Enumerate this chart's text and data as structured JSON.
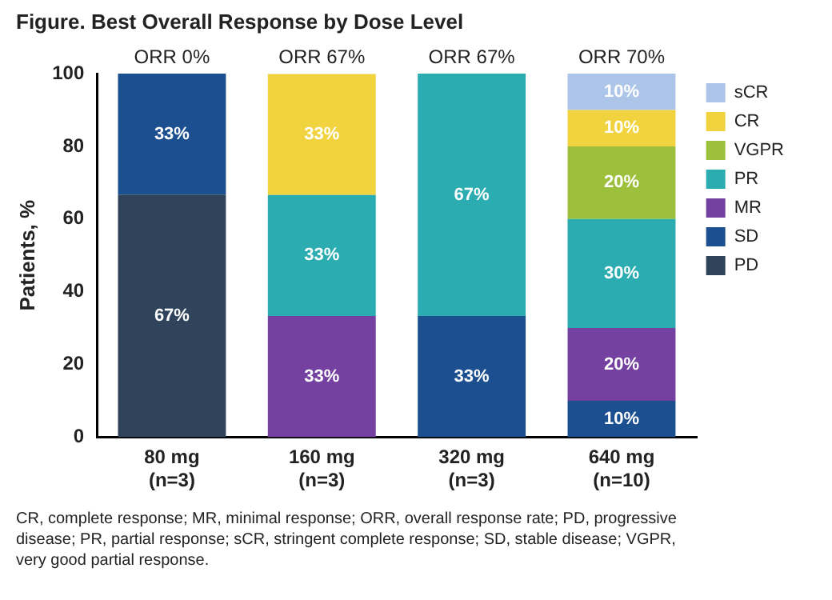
{
  "chart_data": {
    "type": "bar",
    "title": "Figure. Best Overall Response by Dose Level",
    "ylabel": "Patients, %",
    "stacked": true,
    "categories": [
      "80 mg\n(n=3)",
      "160 mg\n(n=3)",
      "320 mg\n(n=3)",
      "640 mg\n(n=10)"
    ],
    "series": [
      {
        "name": "PD",
        "color": "#2f435a",
        "values": [
          66.7,
          0,
          0,
          0
        ],
        "value_labels": [
          "67%",
          null,
          null,
          null
        ]
      },
      {
        "name": "SD",
        "color": "#1b4f8f",
        "values": [
          33.3,
          0,
          33.3,
          10
        ],
        "value_labels": [
          "33%",
          null,
          "33%",
          "10%"
        ]
      },
      {
        "name": "MR",
        "color": "#7441a0",
        "values": [
          0,
          33.3,
          0,
          20
        ],
        "value_labels": [
          null,
          "33%",
          null,
          "20%"
        ]
      },
      {
        "name": "PR",
        "color": "#2bacb0",
        "values": [
          0,
          33.3,
          66.7,
          30
        ],
        "value_labels": [
          null,
          "33%",
          "67%",
          "30%"
        ]
      },
      {
        "name": "VGPR",
        "color": "#9dc03c",
        "values": [
          0,
          0,
          0,
          20
        ],
        "value_labels": [
          null,
          null,
          null,
          "20%"
        ]
      },
      {
        "name": "CR",
        "color": "#f0d33f",
        "values": [
          0,
          33.3,
          0,
          10
        ],
        "value_labels": [
          null,
          "33%",
          null,
          "10%"
        ]
      },
      {
        "name": "sCR",
        "color": "#adc5e8",
        "values": [
          0,
          0,
          0,
          10
        ],
        "value_labels": [
          null,
          null,
          null,
          "10%"
        ]
      }
    ],
    "ylim": [
      0,
      100
    ],
    "yticks": [
      0,
      20,
      40,
      60,
      80,
      100
    ],
    "grid": false,
    "legend": "right",
    "annotations": [
      {
        "text": "ORR 0%",
        "x": "80 mg\n(n=3)",
        "y": 100
      },
      {
        "text": "ORR 67%",
        "x": "160 mg\n(n=3)",
        "y": 100
      },
      {
        "text": "ORR 67%",
        "x": "320 mg\n(n=3)",
        "y": 100
      },
      {
        "text": "ORR 70%",
        "x": "640 mg\n(n=10)",
        "y": 100
      },
      "CR, complete response; MR, minimal response; ORR, overall response rate; PD, progressive disease; PR, partial response; sCR, stringent complete response; SD, stable disease; VGPR, very good partial response."
    ]
  }
}
